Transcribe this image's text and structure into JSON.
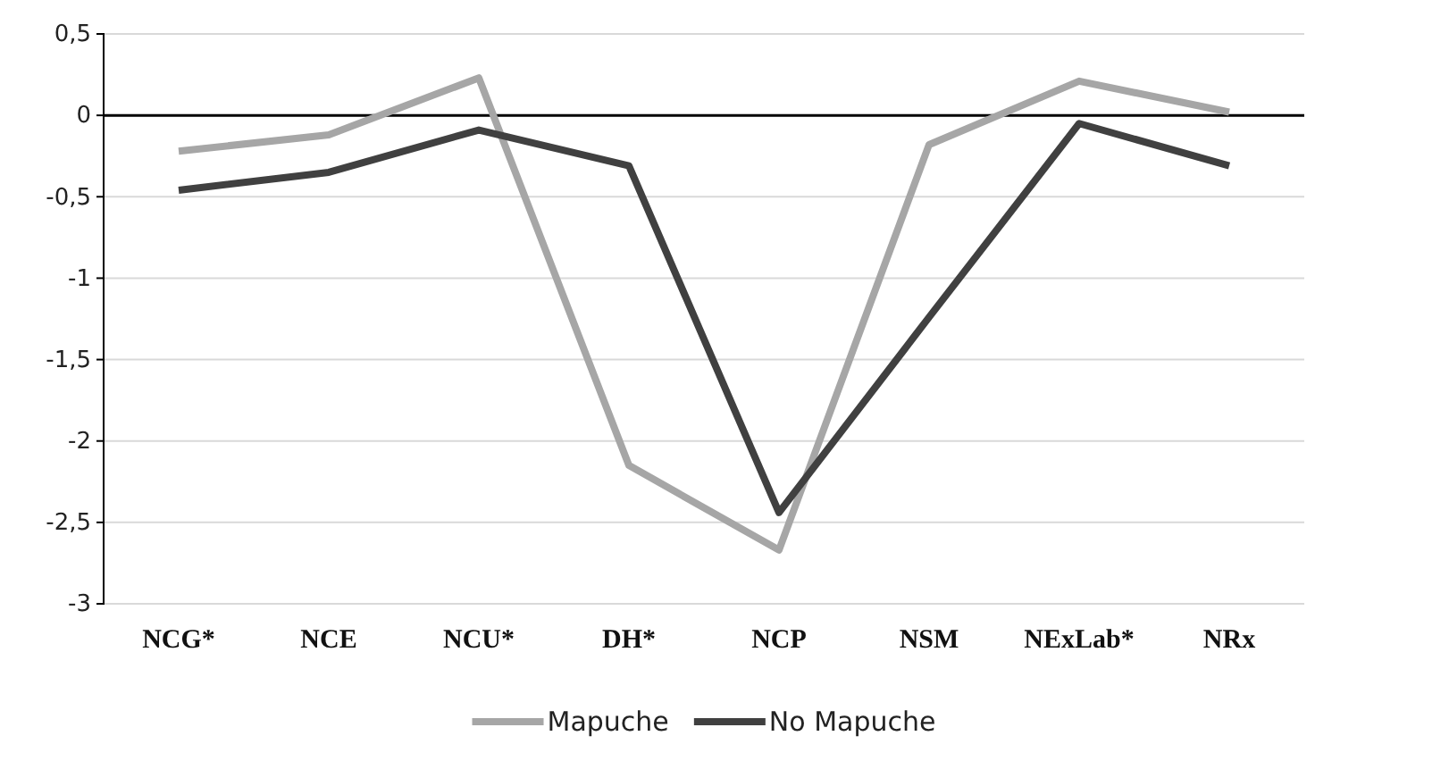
{
  "chart_data": {
    "type": "line",
    "categories": [
      "NCG*",
      "NCE",
      "NCU*",
      "DH*",
      "NCP",
      "NSM",
      "NExLab*",
      "NRx"
    ],
    "series": [
      {
        "name": "Mapuche",
        "color": "#a6a6a6",
        "values": [
          -0.22,
          -0.12,
          0.23,
          -2.15,
          -2.67,
          -0.18,
          0.21,
          0.02
        ]
      },
      {
        "name": "No Mapuche",
        "color": "#404040",
        "values": [
          -0.46,
          -0.35,
          -0.09,
          -0.31,
          -2.44,
          -1.24,
          -0.05,
          -0.31
        ]
      }
    ],
    "ylim": [
      -3,
      0.5
    ],
    "yticks": [
      {
        "value": 0.5,
        "label": "0,5"
      },
      0,
      {
        "value": -0.5,
        "label": "-0,5"
      },
      -1,
      {
        "value": -1.5,
        "label": "-1,5"
      },
      -2,
      {
        "value": -2.5,
        "label": "-2,5"
      },
      -3
    ],
    "grid": "y",
    "legend": "bottom",
    "marker": "none",
    "line_style": "solid"
  }
}
